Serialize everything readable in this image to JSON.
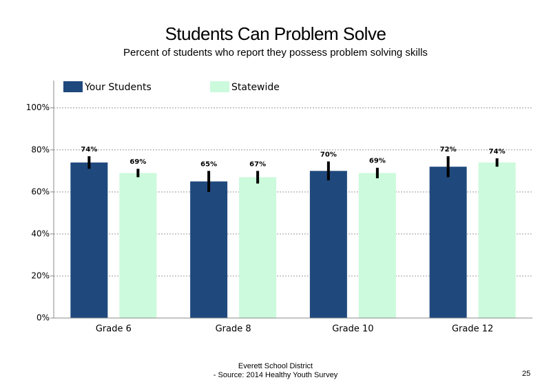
{
  "chart_data": {
    "type": "bar",
    "title": "Students Can Problem Solve",
    "subtitle": "Percent of students who report they possess problem solving skills",
    "categories": [
      "Grade 6",
      "Grade 8",
      "Grade 10",
      "Grade 12"
    ],
    "series": [
      {
        "name": "Your Students",
        "color": "#1f497d",
        "values": [
          74,
          65,
          70,
          72
        ],
        "value_labels": [
          "74%",
          "65%",
          "70%",
          "72%"
        ],
        "errors": [
          3,
          5,
          4.5,
          5
        ]
      },
      {
        "name": "Statewide",
        "color": "#ccfadc",
        "values": [
          69,
          67,
          69,
          74
        ],
        "value_labels": [
          "69%",
          "67%",
          "69%",
          "74%"
        ],
        "errors": [
          2,
          3,
          2.5,
          2
        ]
      }
    ],
    "ylim": [
      0,
      113
    ],
    "yticks": [
      {
        "value": 0,
        "label": "0%"
      },
      {
        "value": 20,
        "label": "20%"
      },
      {
        "value": 40,
        "label": "40%"
      },
      {
        "value": 60,
        "label": "60%"
      },
      {
        "value": 80,
        "label": "80%"
      },
      {
        "value": 100,
        "label": "100%"
      }
    ],
    "grid": true,
    "legend": "top",
    "footer": {
      "organization": "Everett School District",
      "source": "- Source: 2014 Healthy Youth Survey",
      "page": "25"
    }
  }
}
